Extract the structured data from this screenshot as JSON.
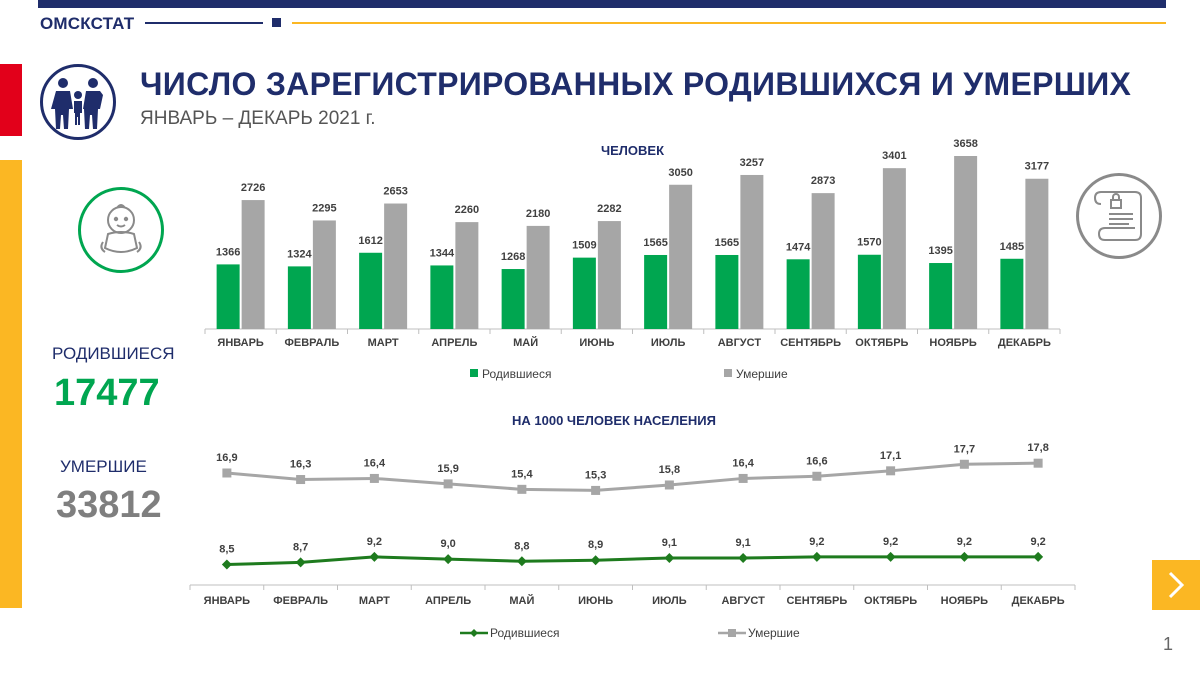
{
  "header": {
    "org": "ОМСКСТАТ",
    "title": "ЧИСЛО ЗАРЕГИСТРИРОВАННЫХ РОДИВШИХСЯ И УМЕРШИХ",
    "subtitle": "ЯНВАРЬ – ДЕКАРЬ 2021 г."
  },
  "summary": {
    "births_label": "РОДИВШИЕСЯ",
    "births_total": "17477",
    "deaths_label": "УМЕРШИЕ",
    "deaths_total": "33812"
  },
  "colors": {
    "navy": "#1f2d6b",
    "births": "#00a650",
    "births_line": "#1e7b1e",
    "deaths": "#a6a6a6",
    "accent_yellow": "#fbb723",
    "accent_red": "#e2001a"
  },
  "icons": {
    "family": "family-icon",
    "baby": "baby-icon",
    "document": "certificate-document-icon",
    "next": "chevron-right-icon"
  },
  "page_number": "1",
  "chart_data": [
    {
      "type": "bar",
      "title": "ЧЕЛОВЕК",
      "categories": [
        "ЯНВАРЬ",
        "ФЕВРАЛЬ",
        "МАРТ",
        "АПРЕЛЬ",
        "МАЙ",
        "ИЮНЬ",
        "ИЮЛЬ",
        "АВГУСТ",
        "СЕНТЯБРЬ",
        "ОКТЯБРЬ",
        "НОЯБРЬ",
        "ДЕКАБРЬ"
      ],
      "series": [
        {
          "name": "Родившиеся",
          "color": "#00a650",
          "values": [
            1366,
            1324,
            1612,
            1344,
            1268,
            1509,
            1565,
            1565,
            1474,
            1570,
            1395,
            1485
          ]
        },
        {
          "name": "Умершие",
          "color": "#a6a6a6",
          "values": [
            2726,
            2295,
            2653,
            2260,
            2180,
            2282,
            3050,
            3257,
            2873,
            3401,
            3658,
            3177
          ]
        }
      ],
      "ylim": [
        0,
        3658
      ],
      "legend": "bottom",
      "grid": false
    },
    {
      "type": "line",
      "title": "НА 1000 ЧЕЛОВЕК НАСЕЛЕНИЯ",
      "categories": [
        "ЯНВАРЬ",
        "ФЕВРАЛЬ",
        "МАРТ",
        "АПРЕЛЬ",
        "МАЙ",
        "ИЮНЬ",
        "ИЮЛЬ",
        "АВГУСТ",
        "СЕНТЯБРЬ",
        "ОКТЯБРЬ",
        "НОЯБРЬ",
        "ДЕКАБРЬ"
      ],
      "series": [
        {
          "name": "Родившиеся",
          "color": "#1e7b1e",
          "marker": "diamond",
          "values": [
            8.5,
            8.7,
            9.2,
            9.0,
            8.8,
            8.9,
            9.1,
            9.1,
            9.2,
            9.2,
            9.2,
            9.2
          ],
          "labels": [
            "8,5",
            "8,7",
            "9,2",
            "9,0",
            "8,8",
            "8,9",
            "9,1",
            "9,1",
            "9,2",
            "9,2",
            "9,2",
            "9,2"
          ]
        },
        {
          "name": "Умершие",
          "color": "#a6a6a6",
          "marker": "square",
          "values": [
            16.9,
            16.3,
            16.4,
            15.9,
            15.4,
            15.3,
            15.8,
            16.4,
            16.6,
            17.1,
            17.7,
            17.8
          ],
          "labels": [
            "16,9",
            "16,3",
            "16,4",
            "15,9",
            "15,4",
            "15,3",
            "15,8",
            "16,4",
            "16,6",
            "17,1",
            "17,7",
            "17,8"
          ]
        }
      ],
      "legend": "bottom",
      "grid": false
    }
  ]
}
